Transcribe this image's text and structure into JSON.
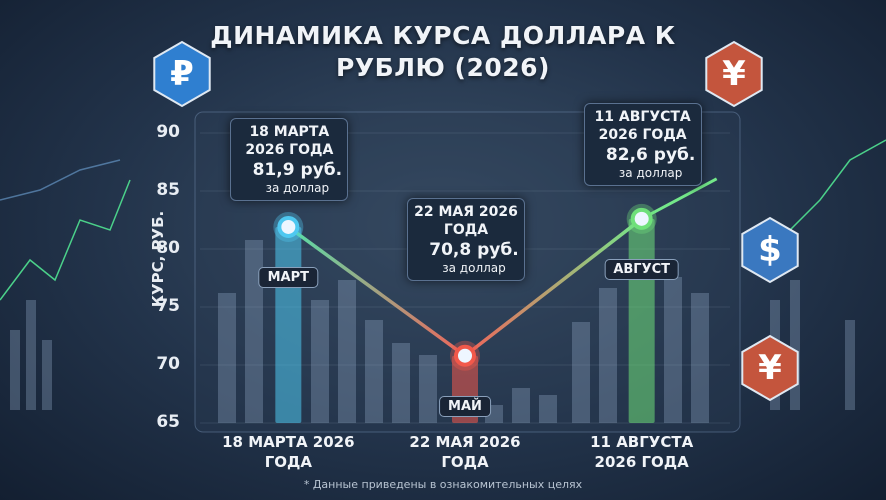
{
  "chart_data": {
    "type": "line",
    "title": "ДИНАМИКА КУРСА ДОЛЛАРА К РУБЛЮ (2026)",
    "y_label": "КУРС, РУБ.",
    "categories": [
      "18 МАРТА 2026 ГОДА",
      "22 МАЯ 2026 ГОДА",
      "11 АВГУСТА 2026 ГОДА"
    ],
    "values": [
      81.9,
      70.8,
      82.6
    ],
    "value_labels": [
      "81,9 руб.",
      "70,8 руб.",
      "82,6 руб."
    ],
    "value_note": "за доллар",
    "point_labels": [
      "МАРТ",
      "МАЙ",
      "АВГУСТ"
    ],
    "point_colors": [
      "#4fc8f0",
      "#f2584a",
      "#6fe07a"
    ],
    "line_colors": [
      "#56e0a8",
      "#f0645a",
      "#74e88a"
    ],
    "ylim": [
      65,
      90
    ],
    "yticks": [
      65,
      70,
      75,
      80,
      85,
      90
    ],
    "badges": [
      "₽",
      "¥",
      "$",
      "¥"
    ],
    "footnote": "* Данные приведены в ознакомительных целях"
  }
}
